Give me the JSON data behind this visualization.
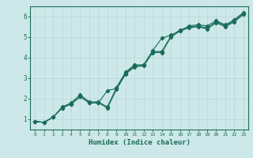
{
  "xlabel": "Humidex (Indice chaleur)",
  "ylabel": "",
  "bg_color": "#cce8e8",
  "grid_color": "#b8d4d4",
  "line_color": "#1a6b5a",
  "xlim": [
    -0.5,
    23.5
  ],
  "ylim": [
    0.5,
    6.5
  ],
  "xticks": [
    0,
    1,
    2,
    3,
    4,
    5,
    6,
    7,
    8,
    9,
    10,
    11,
    12,
    13,
    14,
    15,
    16,
    17,
    18,
    19,
    20,
    21,
    22,
    23
  ],
  "yticks": [
    1,
    2,
    3,
    4,
    5,
    6
  ],
  "line1_x": [
    0,
    1,
    2,
    3,
    4,
    5,
    6,
    7,
    8,
    9,
    10,
    11,
    12,
    13,
    14,
    15,
    16,
    17,
    18,
    19,
    20,
    21,
    22,
    23
  ],
  "line1_y": [
    0.9,
    0.85,
    1.1,
    1.6,
    1.8,
    2.2,
    1.85,
    1.85,
    1.6,
    2.55,
    3.3,
    3.65,
    3.65,
    4.35,
    4.95,
    5.1,
    5.3,
    5.55,
    5.6,
    5.55,
    5.8,
    5.6,
    5.85,
    6.2
  ],
  "line2_x": [
    0,
    1,
    2,
    3,
    4,
    5,
    6,
    7,
    8,
    9,
    10,
    11,
    12,
    13,
    14,
    15,
    16,
    17,
    18,
    19,
    20,
    21,
    22,
    23
  ],
  "line2_y": [
    0.9,
    0.85,
    1.1,
    1.55,
    1.75,
    2.1,
    1.8,
    1.8,
    2.4,
    2.5,
    3.25,
    3.6,
    3.65,
    4.3,
    4.3,
    5.05,
    5.35,
    5.5,
    5.55,
    5.45,
    5.75,
    5.55,
    5.8,
    6.15
  ],
  "line3_x": [
    0,
    1,
    2,
    3,
    4,
    5,
    6,
    7,
    8,
    9,
    10,
    11,
    12,
    13,
    14,
    15,
    16,
    17,
    18,
    19,
    20,
    21,
    22,
    23
  ],
  "line3_y": [
    0.9,
    0.85,
    1.1,
    1.55,
    1.75,
    2.1,
    1.8,
    1.8,
    1.55,
    2.45,
    3.2,
    3.55,
    3.6,
    4.25,
    4.25,
    5.0,
    5.3,
    5.45,
    5.5,
    5.4,
    5.7,
    5.5,
    5.75,
    6.1
  ]
}
